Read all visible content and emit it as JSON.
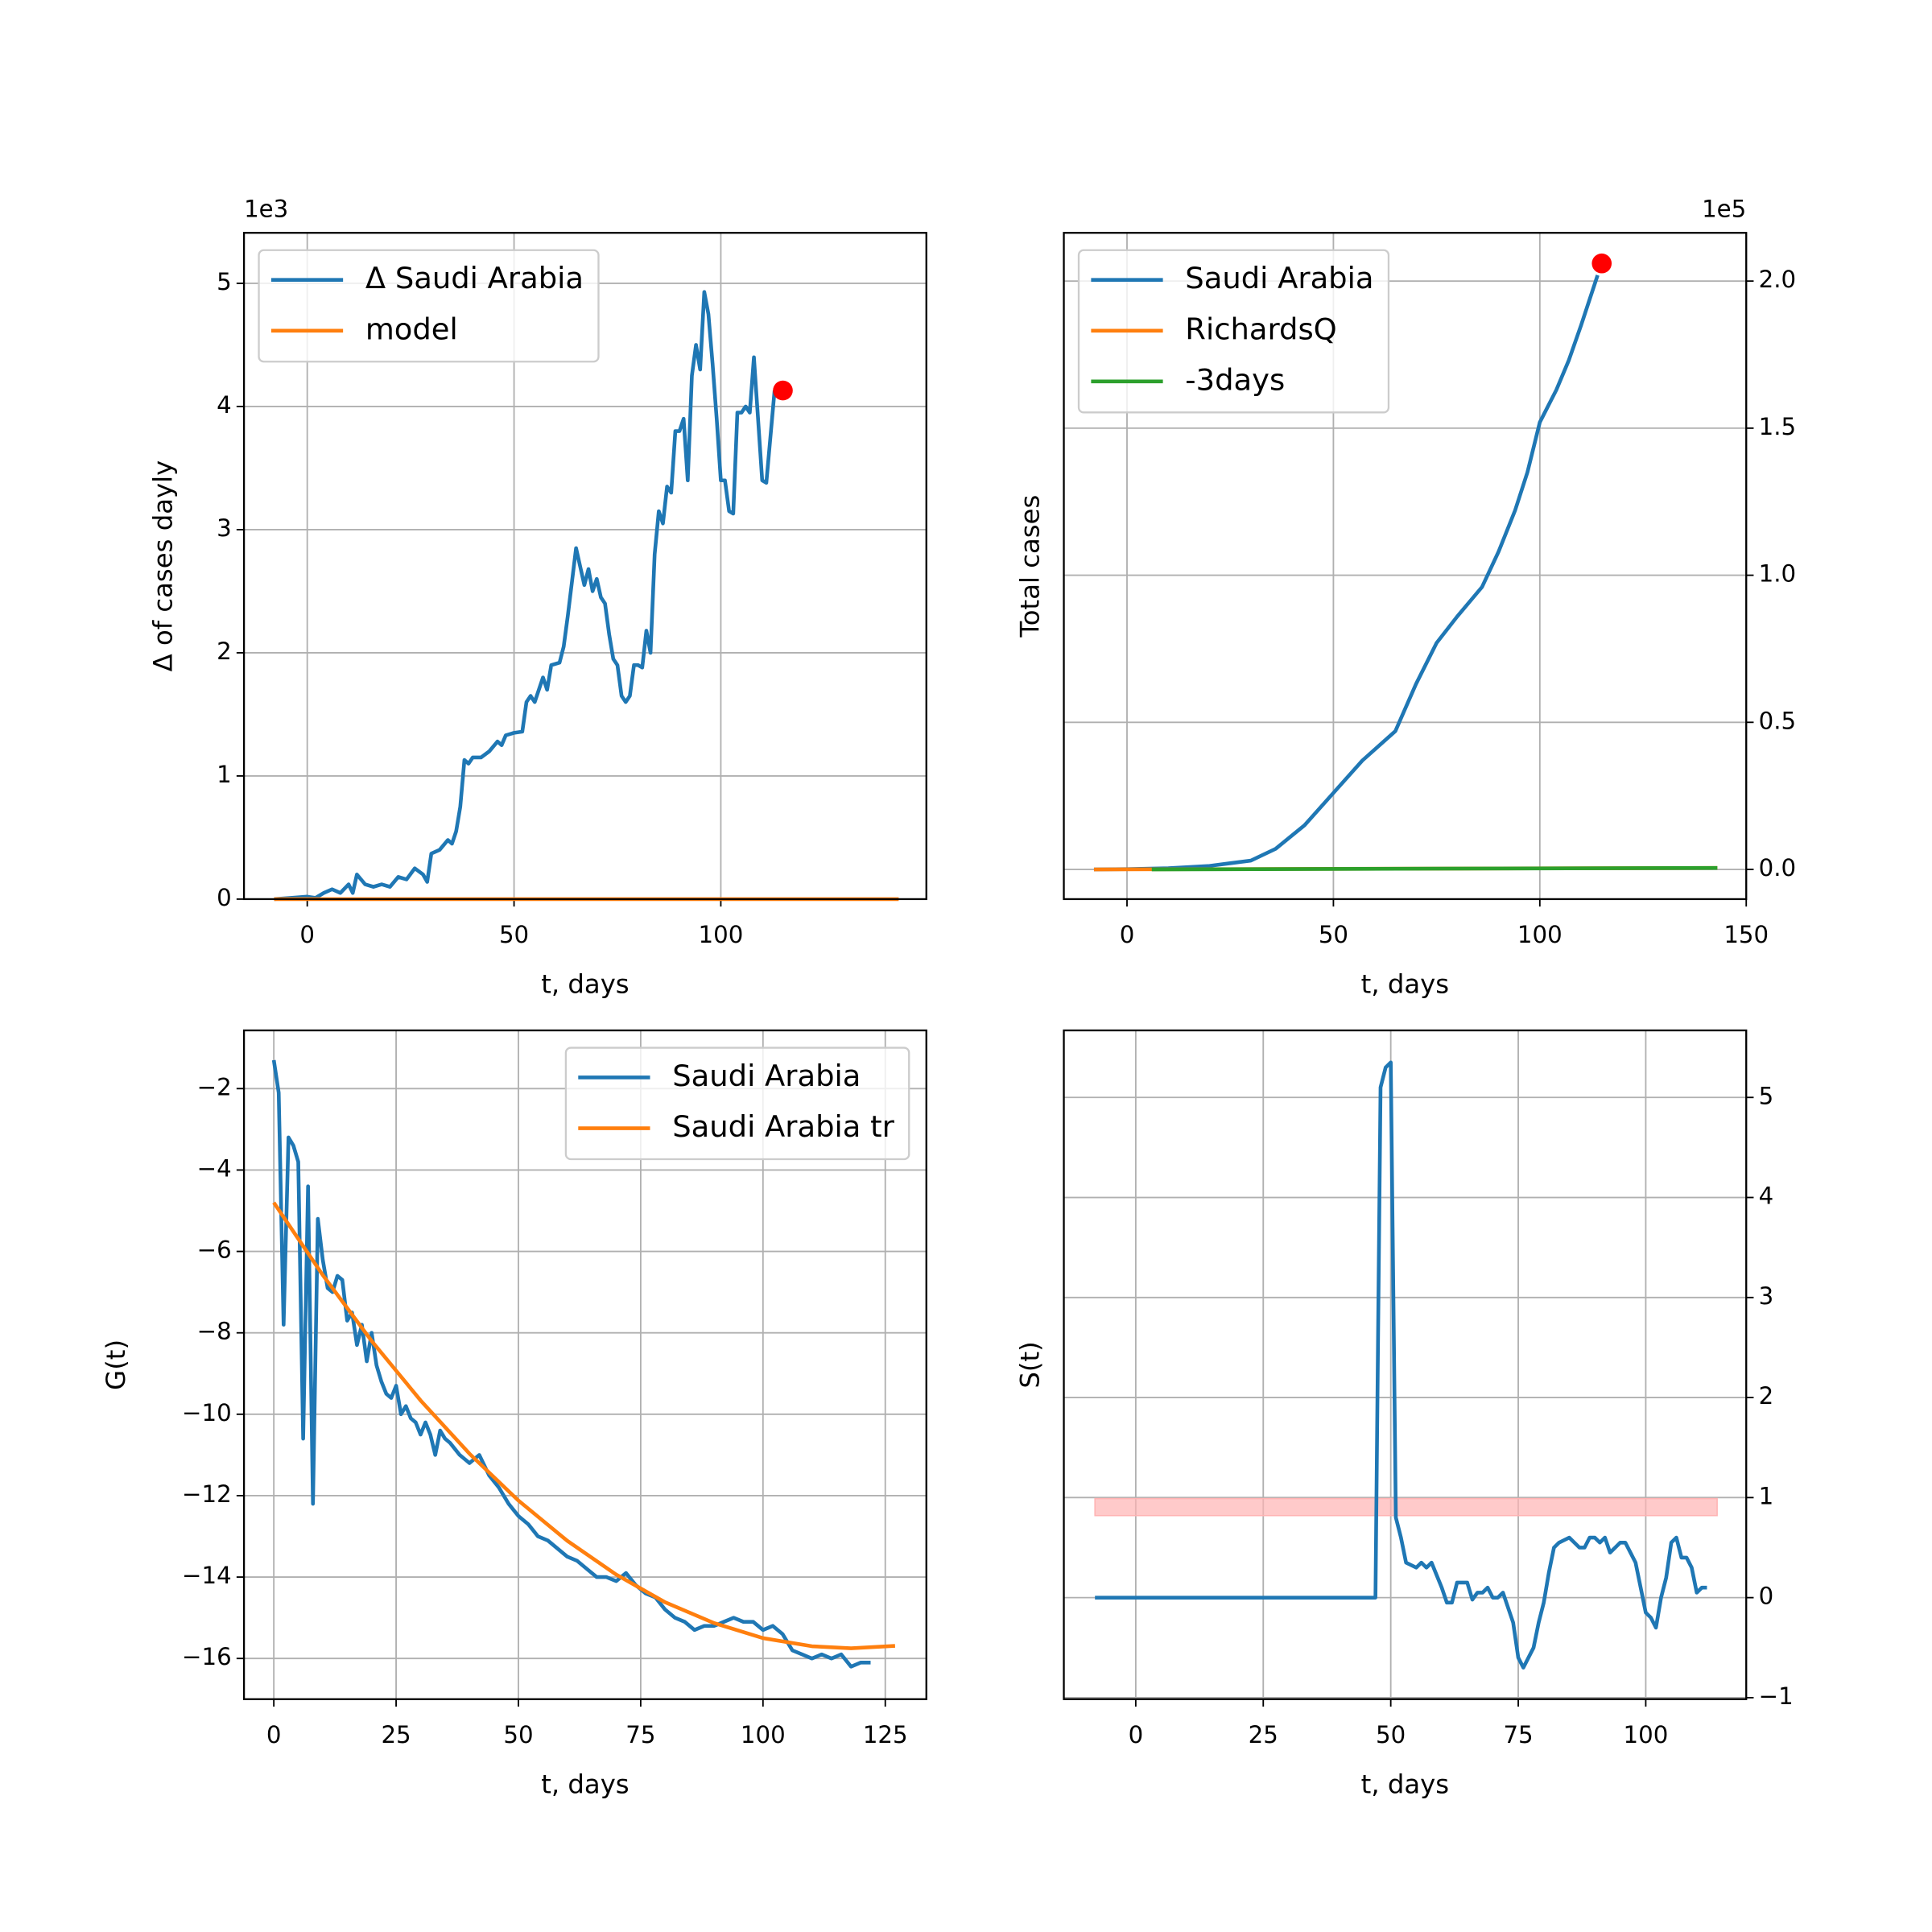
{
  "chart_data": [
    {
      "type": "line",
      "xlabel": "t, days",
      "ylabel": "Δ of cases dayly",
      "offset_text": "1e3",
      "y_axis_side": "left",
      "legend": "upper left",
      "grid": true,
      "xlim": [
        -15.3,
        149.7
      ],
      "ylim": [
        0,
        5.41
      ],
      "xticks": [
        0,
        50,
        100
      ],
      "yticks": [
        0,
        1,
        2,
        3,
        4,
        5
      ],
      "series": [
        {
          "name": "Δ Saudi Arabia",
          "color": "#1f77b4",
          "x": [
            -8,
            -4,
            0,
            2,
            4,
            6,
            8,
            10,
            11,
            12,
            14,
            16,
            18,
            20,
            22,
            24,
            26,
            28,
            29,
            30,
            32,
            34,
            35,
            36,
            37,
            38,
            39,
            40,
            42,
            44,
            46,
            47,
            48,
            50,
            52,
            53,
            54,
            55,
            57,
            58,
            59,
            61,
            62,
            63,
            65,
            66,
            67,
            68,
            69,
            70,
            71,
            72,
            73,
            74,
            75,
            76,
            77,
            78,
            79,
            80,
            81,
            82,
            83,
            84,
            85,
            86,
            87,
            88,
            89,
            90,
            91,
            92,
            93,
            94,
            95,
            96,
            97,
            98,
            99,
            100,
            101,
            102,
            103,
            104,
            105,
            106,
            107,
            108,
            110,
            111,
            113
          ],
          "values": [
            0,
            0.01,
            0.02,
            0.01,
            0.05,
            0.08,
            0.05,
            0.12,
            0.05,
            0.2,
            0.12,
            0.1,
            0.12,
            0.1,
            0.18,
            0.16,
            0.25,
            0.2,
            0.14,
            0.37,
            0.4,
            0.48,
            0.45,
            0.55,
            0.75,
            1.13,
            1.1,
            1.15,
            1.15,
            1.2,
            1.28,
            1.25,
            1.33,
            1.35,
            1.36,
            1.6,
            1.65,
            1.6,
            1.8,
            1.7,
            1.9,
            1.92,
            2.05,
            2.3,
            2.85,
            2.7,
            2.55,
            2.68,
            2.5,
            2.6,
            2.45,
            2.4,
            2.15,
            1.95,
            1.9,
            1.65,
            1.6,
            1.65,
            1.9,
            1.9,
            1.88,
            2.18,
            2.0,
            2.8,
            3.15,
            3.05,
            3.35,
            3.3,
            3.8,
            3.8,
            3.9,
            3.4,
            4.25,
            4.5,
            4.3,
            4.93,
            4.75,
            4.35,
            3.9,
            3.4,
            3.4,
            3.15,
            3.13,
            3.95,
            3.95,
            4.0,
            3.95,
            4.4,
            3.4,
            3.38,
            4.13
          ]
        },
        {
          "name": "model",
          "color": "#ff7f0e",
          "x": [
            -8,
            143
          ],
          "values": [
            0,
            0
          ]
        }
      ],
      "markers": [
        {
          "x": 115,
          "y": 4.13,
          "color": "red"
        }
      ]
    },
    {
      "type": "line",
      "xlabel": "t, days",
      "ylabel": "Total cases",
      "offset_text": "1e5",
      "y_axis_side": "right",
      "legend": "upper left",
      "grid": true,
      "xlim": [
        -15.3,
        150
      ],
      "ylim": [
        -0.101,
        2.164
      ],
      "xticks": [
        0,
        50,
        100,
        150
      ],
      "yticks": [
        {
          "value": 0,
          "label": "0.0"
        },
        0.5,
        {
          "value": 1,
          "label": "1.0"
        },
        1.5,
        {
          "value": 2,
          "label": "2.0"
        }
      ],
      "series": [
        {
          "name": "Saudi Arabia",
          "color": "#1f77b4",
          "x": [
            -8,
            0,
            10,
            20,
            30,
            36,
            43,
            50,
            57,
            65,
            70,
            75,
            80,
            86,
            90,
            94,
            97,
            100,
            104,
            107,
            110,
            114
          ],
          "values": [
            0,
            0.001,
            0.004,
            0.012,
            0.03,
            0.07,
            0.15,
            0.26,
            0.37,
            0.47,
            0.63,
            0.77,
            0.86,
            0.96,
            1.08,
            1.22,
            1.35,
            1.52,
            1.63,
            1.73,
            1.85,
            2.02
          ]
        },
        {
          "name": "RichardsQ",
          "color": "#ff7f0e",
          "x": [
            -8,
            143
          ],
          "values": [
            0,
            0.005
          ]
        },
        {
          "name": "-3days",
          "color": "#2ca02c",
          "x": [
            6,
            143
          ],
          "values": [
            0,
            0.005
          ]
        }
      ],
      "markers": [
        {
          "x": 115,
          "y": 2.06,
          "color": "red"
        }
      ]
    },
    {
      "type": "line",
      "xlabel": "t, days",
      "ylabel": "G(t)",
      "y_axis_side": "left",
      "legend": "upper right",
      "grid": true,
      "xlim": [
        -6.1,
        133.4
      ],
      "ylim": [
        -17.0,
        -0.57
      ],
      "xticks": [
        0,
        25,
        50,
        75,
        100,
        125
      ],
      "yticks": [
        {
          "value": -2,
          "label": "−2"
        },
        {
          "value": -4,
          "label": "−4"
        },
        {
          "value": -6,
          "label": "−6"
        },
        {
          "value": -8,
          "label": "−8"
        },
        {
          "value": -10,
          "label": "−10"
        },
        {
          "value": -12,
          "label": "−12"
        },
        {
          "value": -14,
          "label": "−14"
        },
        {
          "value": -16,
          "label": "−16"
        }
      ],
      "series": [
        {
          "name": "Saudi Arabia",
          "color": "#1f77b4",
          "x": [
            0,
            1,
            2,
            3,
            4,
            5,
            6,
            7,
            8,
            9,
            10,
            11,
            12,
            13,
            14,
            15,
            16,
            17,
            18,
            19,
            20,
            21,
            22,
            23,
            24,
            25,
            26,
            27,
            28,
            29,
            30,
            31,
            32,
            33,
            34,
            35,
            36,
            38,
            40,
            42,
            44,
            46,
            48,
            50,
            52,
            54,
            56,
            58,
            60,
            62,
            64,
            66,
            68,
            70,
            72,
            74,
            76,
            78,
            80,
            82,
            84,
            86,
            88,
            90,
            92,
            94,
            96,
            98,
            100,
            102,
            104,
            106,
            108,
            110,
            112,
            114,
            116,
            118,
            120,
            122
          ],
          "values": [
            -1.3,
            -2.1,
            -7.8,
            -3.2,
            -3.4,
            -3.8,
            -10.6,
            -4.4,
            -12.2,
            -5.2,
            -6.2,
            -6.9,
            -7.0,
            -6.6,
            -6.7,
            -7.7,
            -7.5,
            -8.3,
            -7.8,
            -8.7,
            -8.0,
            -8.8,
            -9.2,
            -9.5,
            -9.6,
            -9.3,
            -10.0,
            -9.8,
            -10.1,
            -10.2,
            -10.5,
            -10.2,
            -10.5,
            -11.0,
            -10.4,
            -10.6,
            -10.7,
            -11.0,
            -11.2,
            -11.0,
            -11.5,
            -11.8,
            -12.2,
            -12.5,
            -12.7,
            -13.0,
            -13.1,
            -13.3,
            -13.5,
            -13.6,
            -13.8,
            -14.0,
            -14.0,
            -14.1,
            -13.9,
            -14.2,
            -14.4,
            -14.5,
            -14.8,
            -15.0,
            -15.1,
            -15.3,
            -15.2,
            -15.2,
            -15.1,
            -15.0,
            -15.1,
            -15.1,
            -15.3,
            -15.2,
            -15.4,
            -15.8,
            -15.9,
            -16.0,
            -15.9,
            -16.0,
            -15.9,
            -16.2,
            -16.1,
            -16.1
          ]
        },
        {
          "name": "Saudi Arabia tr",
          "color": "#ff7f0e",
          "x": [
            0,
            10,
            20,
            30,
            40,
            50,
            60,
            70,
            80,
            90,
            100,
            110,
            118,
            127
          ],
          "values": [
            -4.8,
            -6.58,
            -8.2,
            -9.66,
            -10.97,
            -12.12,
            -13.11,
            -13.94,
            -14.62,
            -15.13,
            -15.5,
            -15.7,
            -15.75,
            -15.69
          ]
        }
      ]
    },
    {
      "type": "line",
      "xlabel": "t, days",
      "ylabel": "S(t)",
      "y_axis_side": "right",
      "grid": true,
      "xlim": [
        -14.1,
        119.7
      ],
      "ylim": [
        -1.015,
        5.67
      ],
      "xticks": [
        0,
        25,
        50,
        75,
        100
      ],
      "yticks": [
        {
          "value": -1,
          "label": "−1"
        },
        0,
        1,
        2,
        3,
        4,
        5
      ],
      "bands": [
        {
          "x": [
            -8,
            114
          ],
          "low": 0.82,
          "high": 0.99,
          "color": "#ffb3b3"
        }
      ],
      "series": [
        {
          "color": "#1f77b4",
          "x": [
            -8,
            47,
            48,
            49,
            50,
            51,
            52,
            53,
            55,
            56,
            57,
            58,
            60,
            61,
            62,
            63,
            65,
            66,
            67,
            68,
            69,
            70,
            71,
            72,
            73,
            74,
            75,
            76,
            77,
            78,
            79,
            80,
            81,
            82,
            83,
            85,
            86,
            87,
            88,
            89,
            90,
            91,
            92,
            93,
            94,
            95,
            96,
            97,
            98,
            99,
            100,
            101,
            102,
            103,
            104,
            105,
            106,
            107,
            108,
            109,
            110,
            111,
            112
          ],
          "values": [
            0,
            0,
            5.1,
            5.3,
            5.35,
            0.8,
            0.6,
            0.35,
            0.3,
            0.35,
            0.3,
            0.35,
            0.1,
            -0.05,
            -0.05,
            0.15,
            0.15,
            -0.02,
            0.05,
            0.05,
            0.1,
            0,
            0,
            0.05,
            -0.1,
            -0.25,
            -0.6,
            -0.7,
            -0.6,
            -0.5,
            -0.25,
            -0.05,
            0.25,
            0.5,
            0.55,
            0.6,
            0.55,
            0.5,
            0.5,
            0.6,
            0.6,
            0.55,
            0.6,
            0.45,
            0.5,
            0.55,
            0.55,
            0.45,
            0.35,
            0.1,
            -0.15,
            -0.2,
            -0.3,
            0,
            0.2,
            0.55,
            0.6,
            0.4,
            0.4,
            0.3,
            0.05,
            0.1,
            0.1
          ]
        }
      ]
    }
  ]
}
